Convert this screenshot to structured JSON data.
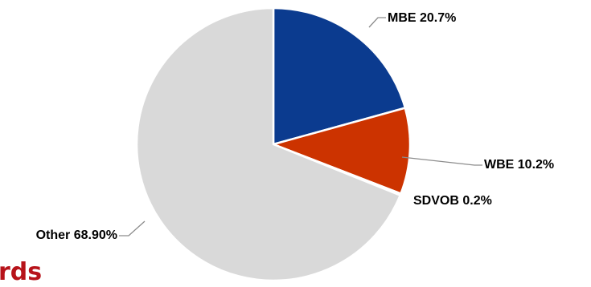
{
  "page": {
    "heading_fragment": "rds",
    "heading_color": "#b7131a"
  },
  "chart_data": {
    "type": "pie",
    "slices": [
      {
        "label": "MBE",
        "value": 20.7,
        "display": "MBE 20.7%",
        "color": "#0b3b8f"
      },
      {
        "label": "WBE",
        "value": 10.2,
        "display": "WBE 10.2%",
        "color": "#cc3300"
      },
      {
        "label": "SDVOB",
        "value": 0.2,
        "display": "SDVOB 0.2%",
        "color": "#7f7f7f"
      },
      {
        "label": "Other",
        "value": 68.9,
        "display": "Other 68.90%",
        "color": "#d9d9d9"
      }
    ],
    "start_angle": "12 o'clock",
    "direction": "clockwise",
    "legend": "none",
    "slice_border_color": "#ffffff"
  }
}
